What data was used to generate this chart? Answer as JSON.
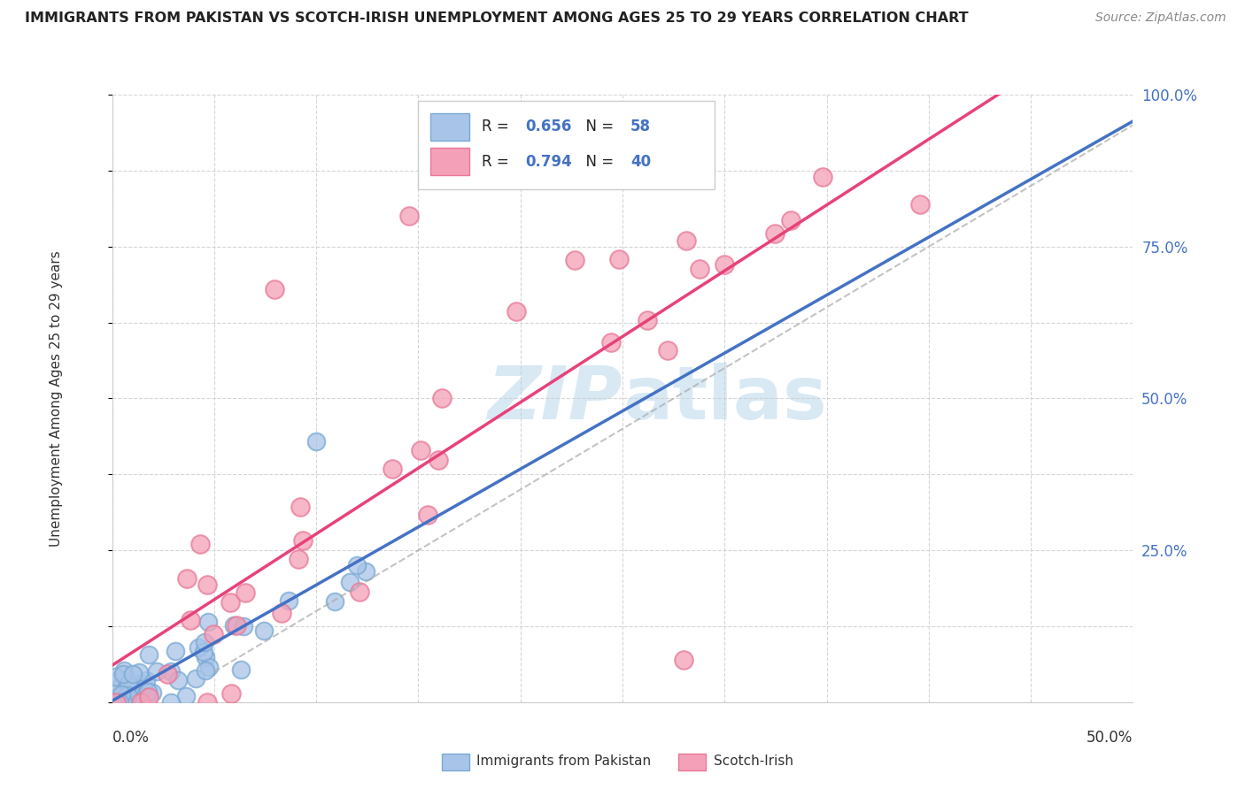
{
  "title": "IMMIGRANTS FROM PAKISTAN VS SCOTCH-IRISH UNEMPLOYMENT AMONG AGES 25 TO 29 YEARS CORRELATION CHART",
  "source": "Source: ZipAtlas.com",
  "ylabel_label": "Unemployment Among Ages 25 to 29 years",
  "pakistan_line_color": "#4472c4",
  "scotch_line_color": "#e8427a",
  "pakistan_marker_facecolor": "#a8c4e8",
  "pakistan_marker_edgecolor": "#7aaad4",
  "scotch_marker_facecolor": "#f4a0b8",
  "scotch_marker_edgecolor": "#e87898",
  "grid_color": "#cccccc",
  "background_color": "#ffffff",
  "title_color": "#222222",
  "stat_color": "#4472c4",
  "watermark_color": "#c8e0f0",
  "xmax": 0.5,
  "ymax": 1.0,
  "pakistan_R": "0.656",
  "pakistan_N": "58",
  "scotch_R": "0.794",
  "scotch_N": "40"
}
